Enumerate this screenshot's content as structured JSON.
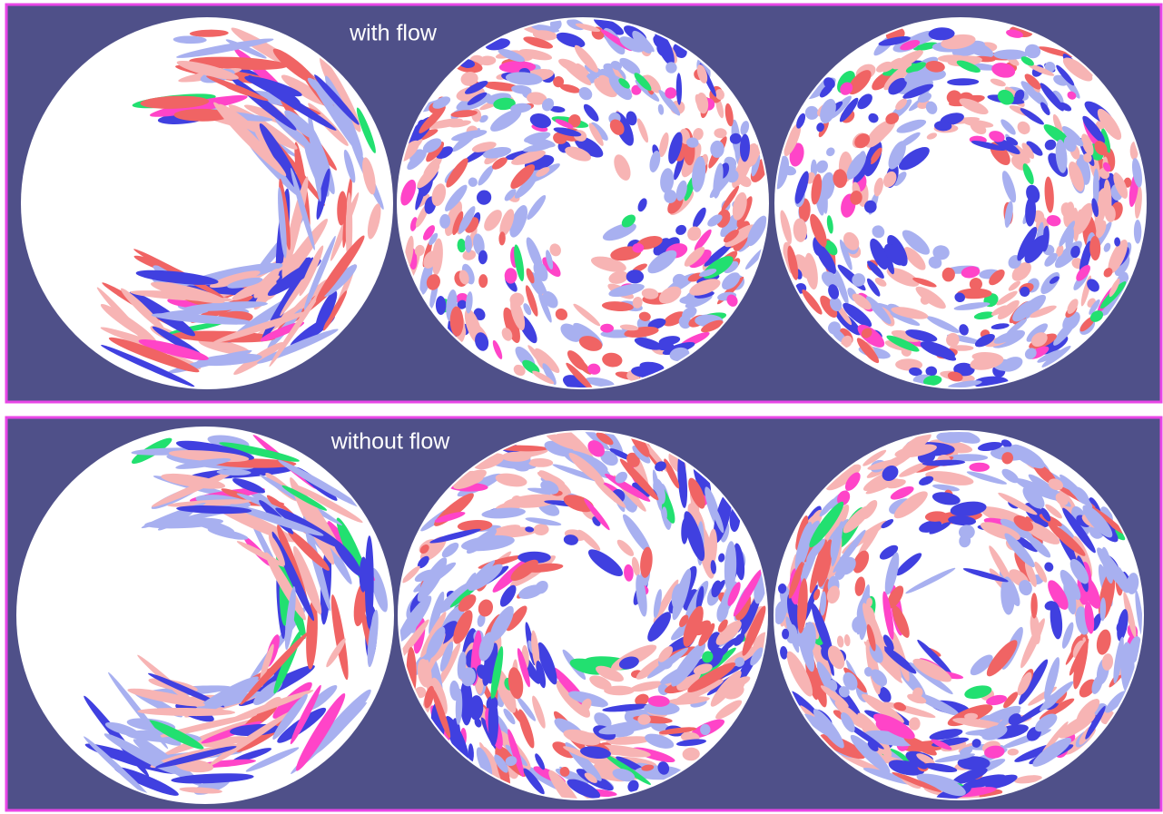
{
  "panels": [
    {
      "label": "with flow"
    },
    {
      "label": "without flow"
    }
  ]
}
